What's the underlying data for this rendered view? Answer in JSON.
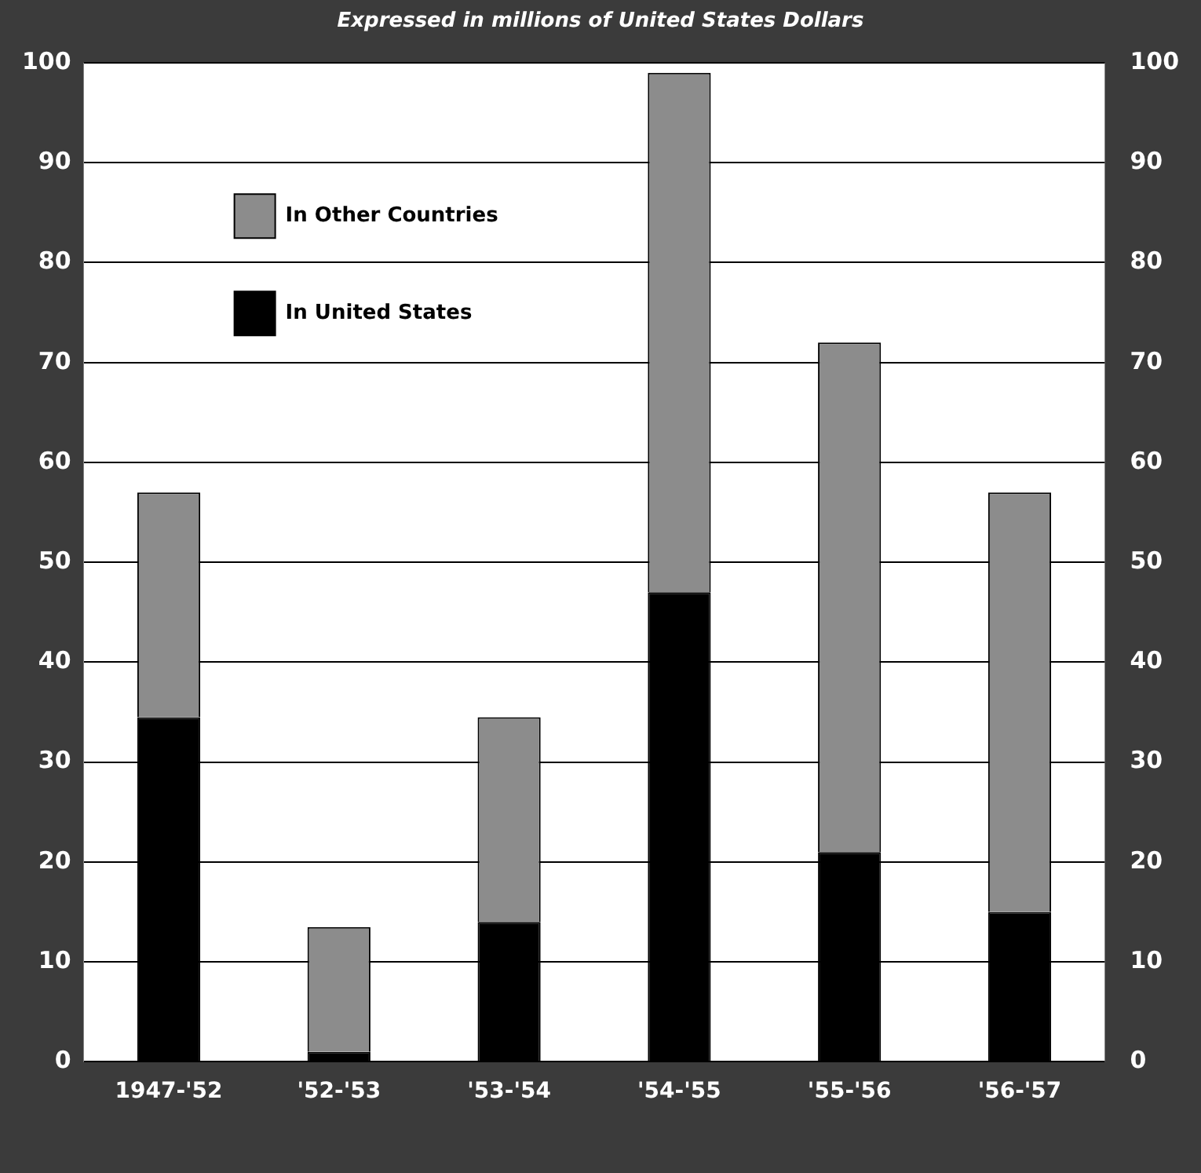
{
  "chart_data": {
    "type": "bar",
    "title": "Expressed in millions of United States Dollars",
    "categories": [
      "1947-'52",
      "'52-'53",
      "'53-'54",
      "'54-'55",
      "'55-'56",
      "'56-'57"
    ],
    "stacked": true,
    "series": [
      {
        "name": "In United States",
        "color": "#000000",
        "values": [
          34.5,
          1,
          14,
          47,
          21,
          15
        ]
      },
      {
        "name": "In Other Countries",
        "color": "#8c8c8c",
        "values": [
          22.5,
          12.5,
          20.5,
          52,
          51,
          42
        ]
      }
    ],
    "ylim": [
      0,
      100
    ],
    "yticks": [
      0,
      10,
      20,
      30,
      40,
      50,
      60,
      70,
      80,
      90,
      100
    ],
    "y2lim": [
      0,
      100
    ],
    "y2ticks": [
      0,
      10,
      20,
      30,
      40,
      50,
      60,
      70,
      80,
      90,
      100
    ],
    "grid": "y",
    "legend": "top left"
  }
}
